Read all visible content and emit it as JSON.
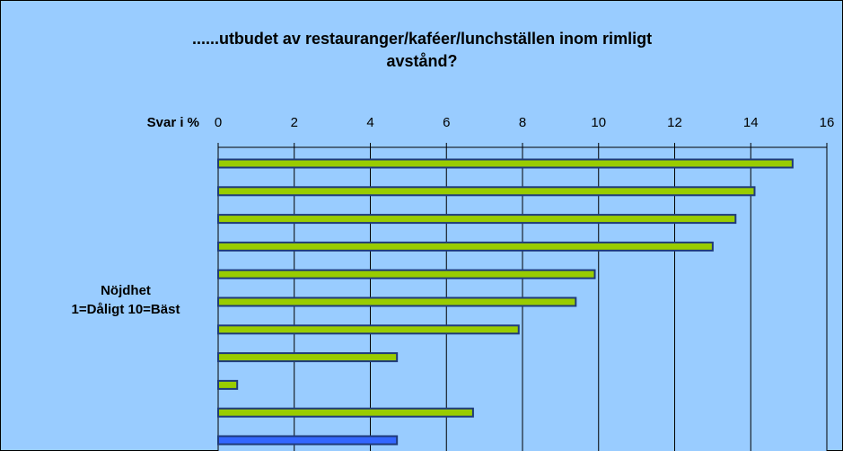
{
  "chart_data": {
    "type": "barh",
    "title": "......utbudet av restauranger/kaféer/lunchställen inom rimligt\navstånd?",
    "xlabel": "Svar i %",
    "ylabel": "Nöjdhet\n1=Dåligt 10=Bäst",
    "categories": [
      null,
      null,
      null,
      null,
      null,
      null,
      null,
      null,
      null,
      null,
      null
    ],
    "values": [
      15.1,
      14.1,
      13.6,
      13.0,
      9.9,
      9.4,
      7.9,
      4.7,
      0.5,
      6.7,
      4.7
    ],
    "colors": [
      "#99cc00",
      "#99cc00",
      "#99cc00",
      "#99cc00",
      "#99cc00",
      "#99cc00",
      "#99cc00",
      "#99cc00",
      "#99cc00",
      "#99cc00",
      "#3366ff"
    ],
    "edge_color": "#1f3a7a",
    "background": "#99ccff",
    "xlim": [
      0,
      16
    ],
    "xticks": [
      0,
      2,
      4,
      6,
      8,
      10,
      12,
      14,
      16
    ],
    "grid": true
  }
}
